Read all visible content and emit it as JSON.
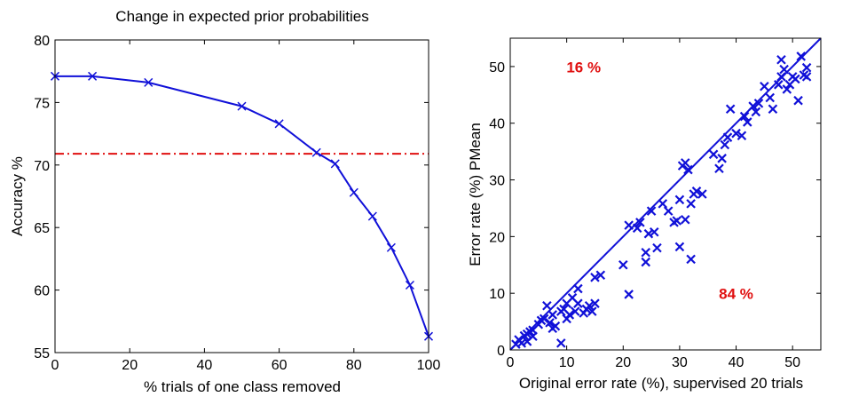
{
  "chart_data": [
    {
      "type": "line",
      "title": "Change in expected prior probabilities",
      "xlabel": "% trials of one class removed",
      "ylabel": "Accuracy %",
      "xlim": [
        0,
        100
      ],
      "ylim": [
        55,
        80
      ],
      "xticks": [
        0,
        20,
        40,
        60,
        80,
        100
      ],
      "yticks": [
        55,
        60,
        65,
        70,
        75,
        80
      ],
      "x": [
        0,
        10,
        25,
        50,
        60,
        70,
        75,
        80,
        85,
        90,
        95,
        100
      ],
      "series": [
        {
          "values": [
            77.1,
            77.1,
            76.6,
            74.7,
            73.3,
            71.0,
            70.1,
            67.8,
            65.9,
            63.4,
            60.4,
            56.3
          ],
          "color": "#1010d8",
          "marker": "x"
        }
      ],
      "reference_lines": [
        {
          "axis": "y",
          "value": 70.9,
          "color": "#e01010",
          "style": "dash-dot"
        }
      ],
      "grid": false
    },
    {
      "type": "scatter",
      "title": "",
      "xlabel": "Original error rate (%), supervised 20 trials",
      "ylabel": "Error rate (%) PMean",
      "xlim": [
        0,
        55
      ],
      "ylim": [
        0,
        55
      ],
      "xticks": [
        0,
        10,
        20,
        30,
        40,
        50
      ],
      "yticks": [
        0,
        10,
        20,
        30,
        40,
        50
      ],
      "color": "#1010d8",
      "marker": "x",
      "points": [
        [
          1,
          1
        ],
        [
          1.5,
          1.8
        ],
        [
          2,
          1.2
        ],
        [
          2.5,
          2.5
        ],
        [
          3,
          1.5
        ],
        [
          3,
          2.8
        ],
        [
          3.5,
          3.2
        ],
        [
          4,
          2.4
        ],
        [
          4,
          3.5
        ],
        [
          5,
          4.5
        ],
        [
          5.5,
          5.2
        ],
        [
          6,
          5.5
        ],
        [
          6.5,
          7.8
        ],
        [
          7,
          4.8
        ],
        [
          7.5,
          3.8
        ],
        [
          7.5,
          6.2
        ],
        [
          8,
          4.2
        ],
        [
          9,
          1.2
        ],
        [
          9,
          6.8
        ],
        [
          9.5,
          7.2
        ],
        [
          10,
          5.5
        ],
        [
          10,
          8.2
        ],
        [
          10.5,
          6.2
        ],
        [
          11,
          9.2
        ],
        [
          11.5,
          6.8
        ],
        [
          12,
          8.2
        ],
        [
          12,
          10.8
        ],
        [
          13,
          6.5
        ],
        [
          13.5,
          7.2
        ],
        [
          14,
          7.8
        ],
        [
          14.5,
          6.8
        ],
        [
          15,
          8.2
        ],
        [
          15,
          12.8
        ],
        [
          16,
          13.2
        ],
        [
          20,
          15
        ],
        [
          21,
          9.8
        ],
        [
          21,
          22
        ],
        [
          22.5,
          21.5
        ],
        [
          23,
          22.5
        ],
        [
          24,
          15.5
        ],
        [
          24,
          17.2
        ],
        [
          24.5,
          20.5
        ],
        [
          25,
          24.5
        ],
        [
          25.5,
          20.8
        ],
        [
          26,
          18
        ],
        [
          27,
          25.8
        ],
        [
          28,
          24.5
        ],
        [
          29,
          22.5
        ],
        [
          29.5,
          22.8
        ],
        [
          30,
          18.2
        ],
        [
          30,
          26.5
        ],
        [
          30.5,
          32.5
        ],
        [
          31,
          23
        ],
        [
          31,
          33
        ],
        [
          31.5,
          31.8
        ],
        [
          32,
          16
        ],
        [
          32,
          25.8
        ],
        [
          32.5,
          27.5
        ],
        [
          33,
          28
        ],
        [
          34,
          27.5
        ],
        [
          36,
          34.5
        ],
        [
          37,
          32
        ],
        [
          37.5,
          33.8
        ],
        [
          38,
          36.2
        ],
        [
          38.5,
          37.5
        ],
        [
          39,
          42.5
        ],
        [
          40,
          38.2
        ],
        [
          41,
          37.8
        ],
        [
          41.5,
          41.2
        ],
        [
          42,
          40.2
        ],
        [
          43,
          43
        ],
        [
          43.5,
          42
        ],
        [
          44,
          43.5
        ],
        [
          45,
          46.5
        ],
        [
          46,
          44.5
        ],
        [
          46.5,
          42.5
        ],
        [
          47.5,
          46.8
        ],
        [
          48,
          51.2
        ],
        [
          48,
          48.2
        ],
        [
          48.5,
          49.5
        ],
        [
          49,
          46
        ],
        [
          49.5,
          46.8
        ],
        [
          50,
          48.2
        ],
        [
          50.5,
          47.8
        ],
        [
          51,
          44
        ],
        [
          51.5,
          51.8
        ],
        [
          52,
          48.5
        ],
        [
          52.5,
          49.8
        ],
        [
          52.5,
          48.2
        ]
      ],
      "reference_lines": [
        {
          "from": [
            0,
            0
          ],
          "to": [
            55,
            55
          ],
          "color": "#1010d8",
          "style": "solid"
        }
      ],
      "annotations": [
        {
          "text": "16 %",
          "x": 13,
          "y": 49,
          "color": "#e01010"
        },
        {
          "text": "84 %",
          "x": 40,
          "y": 9,
          "color": "#e01010"
        }
      ],
      "grid": false
    }
  ]
}
